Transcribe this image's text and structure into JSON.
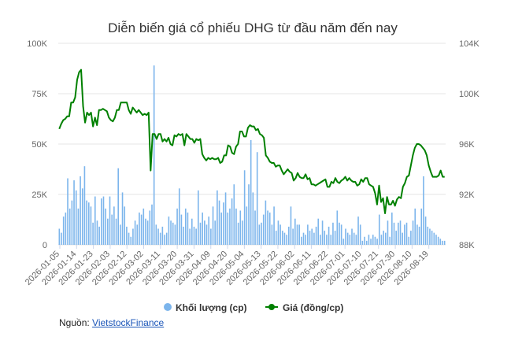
{
  "chart_data": {
    "type": "bar+line",
    "title": "Diễn biến giá cổ phiếu DHG từ đầu năm đến nay",
    "x_tick_labels": [
      "2026-01-05",
      "2026-01-14",
      "2026-01-23",
      "2026-02-03",
      "2026-02-12",
      "2026-03-02",
      "2026-03-11",
      "2026-03-20",
      "2026-03-31",
      "2026-04-09",
      "2026-04-20",
      "2026-05-04",
      "2026-05-13",
      "2026-05-22",
      "2026-06-02",
      "2026-06-11",
      "2026-06-22",
      "2026-07-01",
      "2026-07-10",
      "2026-07-21",
      "2026-07-30",
      "2026-08-10",
      "2026-08-19"
    ],
    "y_left": {
      "ticks": [
        "0",
        "25K",
        "50K",
        "75K",
        "100K"
      ],
      "range": [
        0,
        100000
      ],
      "unit": "cp"
    },
    "y_right": {
      "ticks": [
        "88K",
        "92K",
        "96K",
        "100K",
        "104K"
      ],
      "range": [
        88000,
        104000
      ],
      "unit": "đồng/cp"
    },
    "grid": true,
    "legend_position": "bottom",
    "series": [
      {
        "name": "Khối lượng (cp)",
        "type": "bar",
        "color": "#7cb5ec",
        "values": [
          8000,
          6000,
          14000,
          16000,
          33000,
          18000,
          22000,
          32000,
          27000,
          18000,
          34000,
          28000,
          39000,
          22000,
          21000,
          19000,
          11000,
          24000,
          12000,
          9000,
          23000,
          24000,
          18000,
          13000,
          24000,
          15000,
          19000,
          13000,
          38000,
          10000,
          26000,
          19000,
          9000,
          6000,
          4000,
          8000,
          12000,
          10000,
          16000,
          15000,
          18000,
          13000,
          12000,
          17000,
          20000,
          89000,
          10000,
          8000,
          6000,
          9000,
          5000,
          6000,
          14000,
          12000,
          11000,
          10000,
          18000,
          28000,
          15000,
          9000,
          18000,
          16000,
          8000,
          13000,
          9000,
          8000,
          27000,
          11000,
          16000,
          12000,
          10000,
          14000,
          8000,
          19000,
          12000,
          27000,
          22000,
          16000,
          21000,
          26000,
          16000,
          18000,
          23000,
          30000,
          18000,
          11000,
          17000,
          12000,
          37000,
          19000,
          30000,
          52000,
          26000,
          17000,
          46000,
          10000,
          11000,
          15000,
          22000,
          17000,
          16000,
          10000,
          19000,
          7000,
          12000,
          10000,
          7000,
          6000,
          5000,
          9000,
          19000,
          8000,
          13000,
          10000,
          10000,
          4000,
          6000,
          5000,
          10000,
          7000,
          8000,
          6000,
          9000,
          13000,
          5000,
          12000,
          7000,
          5000,
          9000,
          5000,
          11000,
          7000,
          17000,
          11000,
          10000,
          3000,
          8000,
          6000,
          5000,
          8000,
          6000,
          5000,
          14000,
          10000,
          2000,
          4000,
          2000,
          5000,
          3000,
          5000,
          4000,
          3000,
          15000,
          5000,
          7000,
          6000,
          12000,
          4000,
          16000,
          11000,
          7000,
          11000,
          12000,
          6000,
          10000,
          11000,
          4000,
          7000,
          12000,
          18000,
          10000,
          9000,
          18000,
          34000,
          14000,
          9000,
          8000,
          7000,
          6000,
          5000,
          4000,
          3000,
          2000,
          2000
        ],
        "axis": "left"
      },
      {
        "name": "Giá (đồng/cp)",
        "type": "line",
        "color": "#008000",
        "values": [
          97200,
          97600,
          97900,
          98000,
          98200,
          98200,
          99300,
          99300,
          99700,
          101100,
          101700,
          101900,
          99000,
          97700,
          98500,
          98300,
          98500,
          97400,
          98100,
          97500,
          98700,
          98700,
          98800,
          98700,
          98600,
          98100,
          97900,
          97800,
          98100,
          98700,
          98700,
          99300,
          99300,
          99300,
          99300,
          98700,
          98400,
          98900,
          98700,
          98500,
          98700,
          98500,
          98300,
          98400,
          98300,
          98500,
          93900,
          96800,
          96800,
          96400,
          96800,
          96800,
          96200,
          96400,
          96200,
          96500,
          96000,
          95900,
          96700,
          96600,
          96800,
          96700,
          96800,
          95900,
          96800,
          96600,
          96400,
          96400,
          96100,
          96400,
          96300,
          96400,
          95200,
          94900,
          94700,
          94900,
          94800,
          94900,
          94800,
          94800,
          94900,
          94500,
          94600,
          95100,
          95100,
          95900,
          95800,
          95300,
          95200,
          95800,
          96000,
          97000,
          97000,
          96600,
          96600,
          97300,
          97500,
          97400,
          97400,
          97100,
          97200,
          96800,
          96700,
          96500,
          95100,
          94900,
          94600,
          94500,
          94500,
          94200,
          94300,
          94300,
          93900,
          93600,
          93800,
          94000,
          93800,
          93700,
          93100,
          93300,
          93700,
          93400,
          93300,
          93300,
          93600,
          93200,
          93300,
          92800,
          92800,
          92700,
          92800,
          92900,
          93000,
          93100,
          93200,
          92600,
          92600,
          93000,
          92900,
          93300,
          93000,
          92900,
          93100,
          93200,
          93400,
          93100,
          93300,
          93100,
          93000,
          93000,
          92700,
          92800,
          93200,
          93000,
          93300,
          93300,
          92800,
          92700,
          92600,
          92100,
          91200,
          92700,
          91400,
          91700,
          90500,
          91800,
          91200,
          91200,
          91500,
          91100,
          91600,
          91800,
          91700,
          92600,
          92900,
          93400,
          93500,
          94300,
          95100,
          95700,
          96000,
          96000,
          95900,
          95700,
          95500,
          95100,
          94300,
          93800,
          93400,
          93400,
          93400,
          93500,
          93900,
          93400,
          93400
        ],
        "axis": "right"
      }
    ]
  },
  "legend": {
    "volume_label": "Khối lượng (cp)",
    "price_label": "Giá (đồng/cp)"
  },
  "source": {
    "label": "Nguồn:",
    "link_text": "VietstockFinance"
  }
}
